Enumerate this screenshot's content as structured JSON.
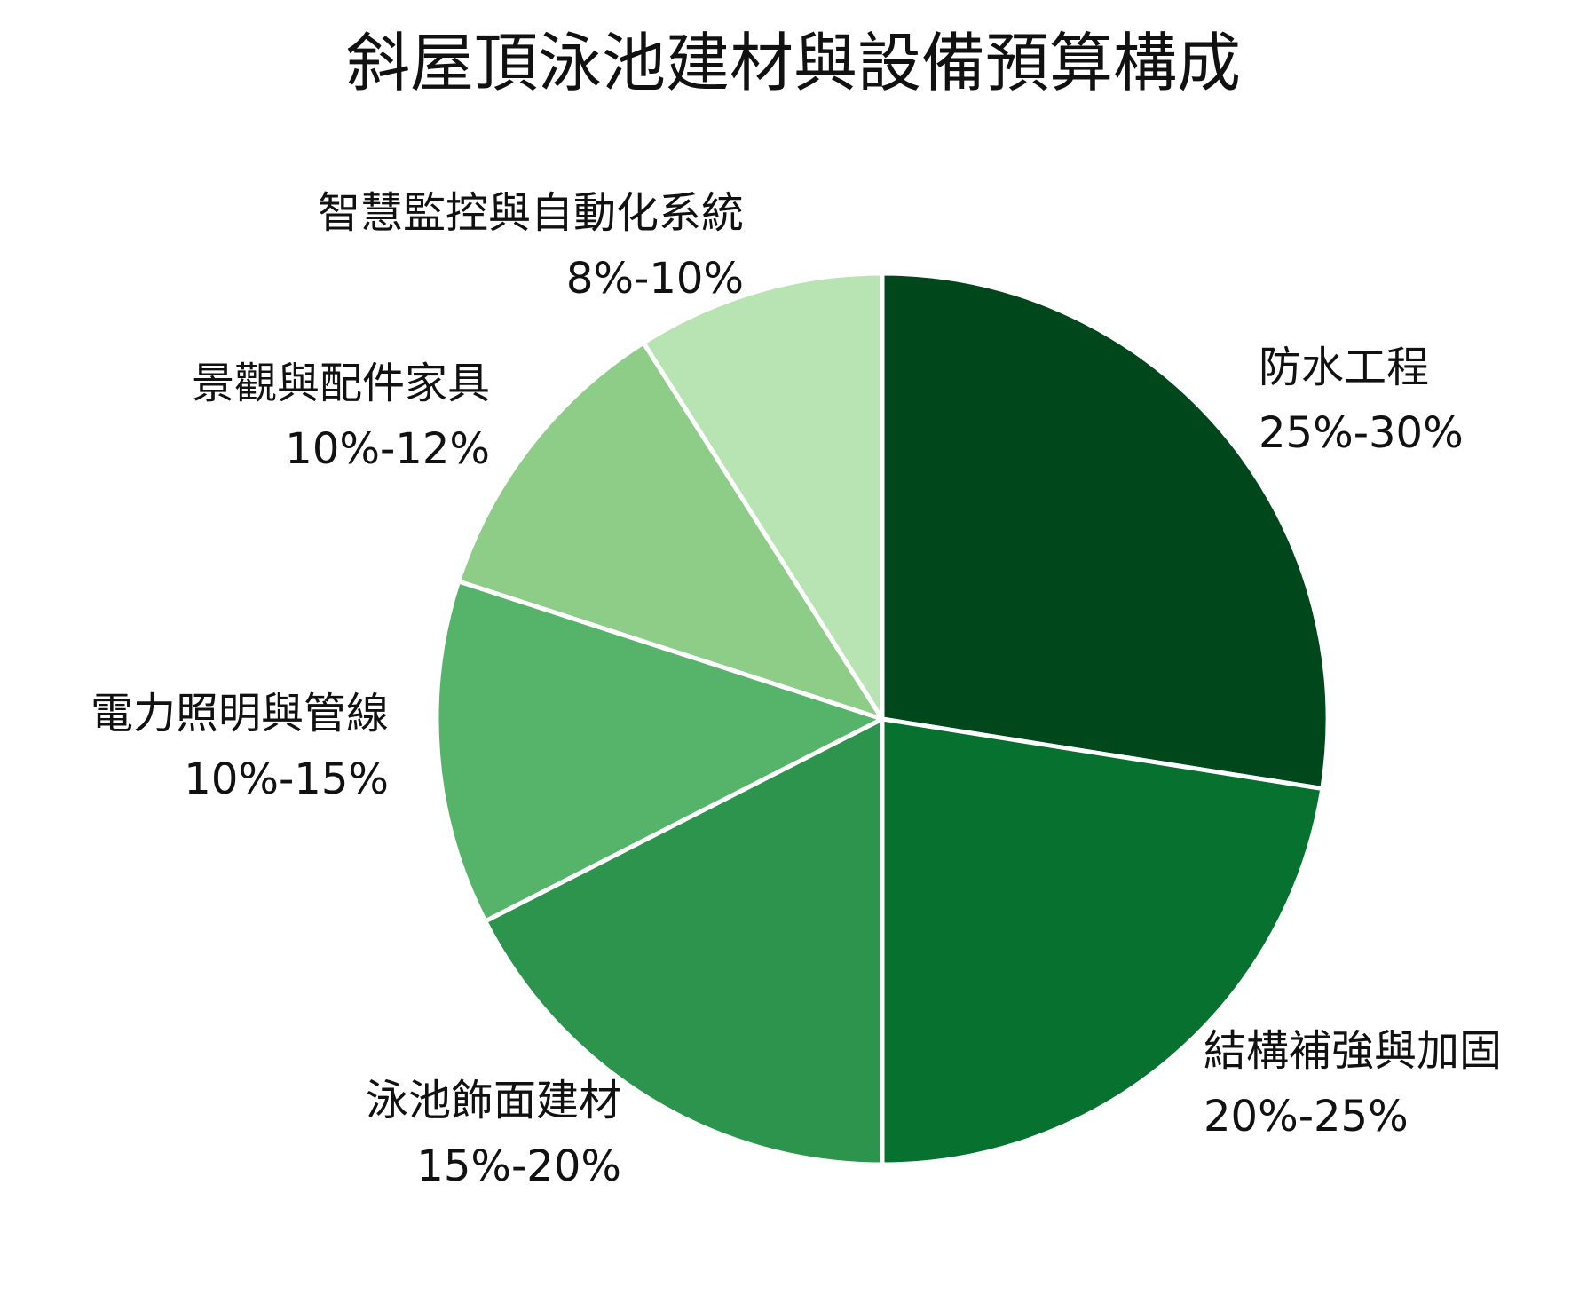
{
  "chart_data": {
    "type": "pie",
    "title": "斜屋頂泳池建材與設備預算構成",
    "start_angle_deg": 0,
    "direction": "clockwise",
    "slices": [
      {
        "name": "防水工程",
        "range": "25%-30%",
        "value": 27.5,
        "color": "#00471c"
      },
      {
        "name": "結構補強與加固",
        "range": "20%-25%",
        "value": 22.5,
        "color": "#07712f"
      },
      {
        "name": "泳池飾面建材",
        "range": "15%-20%",
        "value": 17.5,
        "color": "#2c944c"
      },
      {
        "name": "電力照明與管線",
        "range": "10%-15%",
        "value": 12.5,
        "color": "#56b46a"
      },
      {
        "name": "景觀與配件家具",
        "range": "10%-12%",
        "value": 11.0,
        "color": "#8dcd88"
      },
      {
        "name": "智慧監控與自動化系統",
        "range": "8%-10%",
        "value": 9.0,
        "color": "#b8e3b2"
      }
    ]
  }
}
